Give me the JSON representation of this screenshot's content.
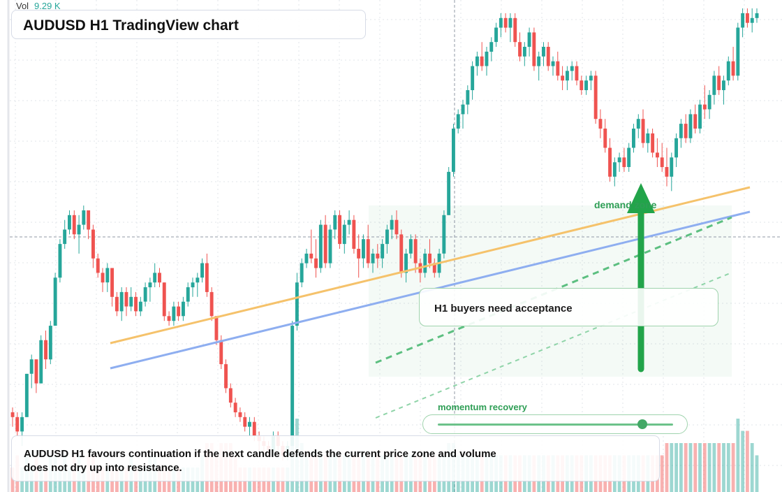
{
  "header": {
    "vol_label": "Vol",
    "vol_value": "9.29 K",
    "title": "AUDUSD H1 TradingView chart"
  },
  "annotations": {
    "callout": "H1 buyers need acceptance",
    "zone_label": "demand zone",
    "momentum_label": "momentum recovery",
    "momentum_level": 0.87,
    "summary": "AUDUSD H1 favours continuation if the next candle defends the current price zone and volume does not dry up into resistance."
  },
  "colors": {
    "up": "#26a69a",
    "down": "#ef5350",
    "trend_upper": "#f5c26b",
    "trend_lower": "#8eaef0",
    "accent_green": "#22a44a"
  },
  "chart_data": {
    "type": "candlestick",
    "symbol": "AUDUSD",
    "timeframe": "H1",
    "ylim": [
      0,
      1
    ],
    "candles": [
      [
        0.16,
        0.17,
        0.13,
        0.15,
        2
      ],
      [
        0.15,
        0.16,
        0.11,
        0.12,
        3
      ],
      [
        0.12,
        0.16,
        0.09,
        0.15,
        2
      ],
      [
        0.15,
        0.24,
        0.15,
        0.24,
        3
      ],
      [
        0.24,
        0.28,
        0.21,
        0.27,
        2
      ],
      [
        0.27,
        0.27,
        0.2,
        0.22,
        3
      ],
      [
        0.22,
        0.32,
        0.22,
        0.31,
        2
      ],
      [
        0.31,
        0.33,
        0.25,
        0.27,
        2
      ],
      [
        0.27,
        0.35,
        0.26,
        0.34,
        3
      ],
      [
        0.34,
        0.45,
        0.34,
        0.44,
        3
      ],
      [
        0.44,
        0.52,
        0.43,
        0.51,
        2
      ],
      [
        0.51,
        0.56,
        0.5,
        0.54,
        3
      ],
      [
        0.54,
        0.58,
        0.53,
        0.57,
        2
      ],
      [
        0.57,
        0.58,
        0.52,
        0.53,
        3
      ],
      [
        0.53,
        0.57,
        0.49,
        0.55,
        3
      ],
      [
        0.55,
        0.59,
        0.54,
        0.58,
        2
      ],
      [
        0.58,
        0.58,
        0.52,
        0.54,
        3
      ],
      [
        0.54,
        0.55,
        0.46,
        0.48,
        3
      ],
      [
        0.48,
        0.49,
        0.44,
        0.45,
        2
      ],
      [
        0.45,
        0.46,
        0.41,
        0.43,
        2
      ],
      [
        0.43,
        0.47,
        0.41,
        0.46,
        2
      ],
      [
        0.46,
        0.46,
        0.38,
        0.4,
        2
      ],
      [
        0.4,
        0.41,
        0.36,
        0.37,
        2
      ],
      [
        0.37,
        0.42,
        0.35,
        0.41,
        2
      ],
      [
        0.41,
        0.42,
        0.36,
        0.38,
        2
      ],
      [
        0.38,
        0.42,
        0.37,
        0.4,
        3
      ],
      [
        0.4,
        0.41,
        0.36,
        0.37,
        2
      ],
      [
        0.37,
        0.4,
        0.36,
        0.39,
        2
      ],
      [
        0.39,
        0.43,
        0.38,
        0.42,
        2
      ],
      [
        0.42,
        0.44,
        0.39,
        0.43,
        3
      ],
      [
        0.43,
        0.47,
        0.42,
        0.45,
        3
      ],
      [
        0.45,
        0.46,
        0.42,
        0.43,
        2
      ],
      [
        0.43,
        0.43,
        0.35,
        0.36,
        2
      ],
      [
        0.36,
        0.37,
        0.34,
        0.35,
        2
      ],
      [
        0.35,
        0.39,
        0.34,
        0.38,
        2
      ],
      [
        0.38,
        0.39,
        0.35,
        0.36,
        2
      ],
      [
        0.36,
        0.4,
        0.35,
        0.39,
        2
      ],
      [
        0.39,
        0.43,
        0.38,
        0.42,
        2
      ],
      [
        0.42,
        0.44,
        0.4,
        0.43,
        2
      ],
      [
        0.43,
        0.45,
        0.4,
        0.44,
        2
      ],
      [
        0.44,
        0.48,
        0.43,
        0.47,
        3
      ],
      [
        0.47,
        0.49,
        0.4,
        0.41,
        4
      ],
      [
        0.41,
        0.42,
        0.35,
        0.36,
        4
      ],
      [
        0.36,
        0.36,
        0.3,
        0.31,
        3
      ],
      [
        0.31,
        0.32,
        0.25,
        0.26,
        4
      ],
      [
        0.26,
        0.27,
        0.2,
        0.21,
        4
      ],
      [
        0.21,
        0.22,
        0.17,
        0.18,
        4
      ],
      [
        0.18,
        0.19,
        0.15,
        0.16,
        3
      ],
      [
        0.16,
        0.17,
        0.14,
        0.15,
        2
      ],
      [
        0.15,
        0.16,
        0.12,
        0.13,
        2
      ],
      [
        0.13,
        0.15,
        0.11,
        0.14,
        2
      ],
      [
        0.14,
        0.15,
        0.1,
        0.11,
        2
      ],
      [
        0.11,
        0.12,
        0.08,
        0.1,
        2
      ],
      [
        0.1,
        0.11,
        0.07,
        0.09,
        2
      ],
      [
        0.09,
        0.1,
        0.07,
        0.08,
        2
      ],
      [
        0.08,
        0.12,
        0.07,
        0.11,
        2
      ],
      [
        0.11,
        0.12,
        0.08,
        0.09,
        2
      ],
      [
        0.09,
        0.1,
        0.06,
        0.07,
        2
      ],
      [
        0.07,
        0.1,
        0.06,
        0.09,
        2
      ],
      [
        0.09,
        0.35,
        0.09,
        0.34,
        8
      ],
      [
        0.34,
        0.45,
        0.33,
        0.43,
        6
      ],
      [
        0.43,
        0.48,
        0.42,
        0.47,
        4
      ],
      [
        0.47,
        0.5,
        0.46,
        0.49,
        3
      ],
      [
        0.49,
        0.54,
        0.47,
        0.48,
        3
      ],
      [
        0.48,
        0.52,
        0.44,
        0.46,
        3
      ],
      [
        0.46,
        0.56,
        0.45,
        0.55,
        3
      ],
      [
        0.55,
        0.57,
        0.46,
        0.47,
        3
      ],
      [
        0.47,
        0.55,
        0.46,
        0.54,
        3
      ],
      [
        0.54,
        0.58,
        0.52,
        0.57,
        3
      ],
      [
        0.57,
        0.58,
        0.5,
        0.51,
        3
      ],
      [
        0.51,
        0.56,
        0.49,
        0.55,
        3
      ],
      [
        0.55,
        0.58,
        0.53,
        0.56,
        3
      ],
      [
        0.56,
        0.57,
        0.49,
        0.5,
        3
      ],
      [
        0.5,
        0.53,
        0.44,
        0.48,
        3
      ],
      [
        0.48,
        0.53,
        0.46,
        0.52,
        3
      ],
      [
        0.52,
        0.55,
        0.46,
        0.47,
        3
      ],
      [
        0.47,
        0.5,
        0.45,
        0.49,
        3
      ],
      [
        0.49,
        0.51,
        0.46,
        0.48,
        3
      ],
      [
        0.48,
        0.52,
        0.46,
        0.51,
        3
      ],
      [
        0.51,
        0.55,
        0.49,
        0.54,
        3
      ],
      [
        0.54,
        0.57,
        0.52,
        0.56,
        3
      ],
      [
        0.56,
        0.58,
        0.52,
        0.53,
        3
      ],
      [
        0.53,
        0.54,
        0.44,
        0.45,
        3
      ],
      [
        0.45,
        0.5,
        0.43,
        0.49,
        3
      ],
      [
        0.49,
        0.53,
        0.48,
        0.52,
        3
      ],
      [
        0.52,
        0.53,
        0.45,
        0.47,
        3
      ],
      [
        0.47,
        0.48,
        0.43,
        0.45,
        3
      ],
      [
        0.45,
        0.5,
        0.44,
        0.49,
        3
      ],
      [
        0.49,
        0.52,
        0.46,
        0.47,
        3
      ],
      [
        0.47,
        0.48,
        0.44,
        0.45,
        3
      ],
      [
        0.45,
        0.5,
        0.44,
        0.49,
        3
      ],
      [
        0.49,
        0.58,
        0.48,
        0.57,
        3
      ],
      [
        0.57,
        0.67,
        0.57,
        0.66,
        4
      ],
      [
        0.66,
        0.76,
        0.65,
        0.75,
        4
      ],
      [
        0.75,
        0.79,
        0.74,
        0.78,
        3
      ],
      [
        0.78,
        0.81,
        0.75,
        0.8,
        3
      ],
      [
        0.8,
        0.84,
        0.78,
        0.83,
        3
      ],
      [
        0.83,
        0.89,
        0.81,
        0.88,
        3
      ],
      [
        0.88,
        0.91,
        0.86,
        0.9,
        3
      ],
      [
        0.9,
        0.93,
        0.87,
        0.88,
        3
      ],
      [
        0.88,
        0.92,
        0.86,
        0.91,
        3
      ],
      [
        0.91,
        0.94,
        0.89,
        0.93,
        3
      ],
      [
        0.93,
        0.97,
        0.92,
        0.96,
        3
      ],
      [
        0.96,
        0.99,
        0.94,
        0.98,
        3
      ],
      [
        0.98,
        0.99,
        0.95,
        0.96,
        3
      ],
      [
        0.96,
        0.99,
        0.93,
        0.98,
        3
      ],
      [
        0.98,
        0.99,
        0.92,
        0.93,
        3
      ],
      [
        0.93,
        0.95,
        0.89,
        0.9,
        3
      ],
      [
        0.9,
        0.93,
        0.88,
        0.92,
        3
      ],
      [
        0.92,
        0.96,
        0.9,
        0.95,
        3
      ],
      [
        0.95,
        0.96,
        0.87,
        0.88,
        3
      ],
      [
        0.88,
        0.91,
        0.85,
        0.9,
        3
      ],
      [
        0.9,
        0.93,
        0.88,
        0.92,
        3
      ],
      [
        0.92,
        0.93,
        0.87,
        0.88,
        3
      ],
      [
        0.88,
        0.9,
        0.86,
        0.89,
        3
      ],
      [
        0.89,
        0.91,
        0.85,
        0.86,
        3
      ],
      [
        0.86,
        0.88,
        0.83,
        0.85,
        3
      ],
      [
        0.85,
        0.88,
        0.83,
        0.87,
        3
      ],
      [
        0.87,
        0.89,
        0.85,
        0.88,
        3
      ],
      [
        0.88,
        0.89,
        0.84,
        0.85,
        3
      ],
      [
        0.85,
        0.86,
        0.82,
        0.83,
        3
      ],
      [
        0.83,
        0.86,
        0.82,
        0.85,
        3
      ],
      [
        0.85,
        0.87,
        0.83,
        0.86,
        3
      ],
      [
        0.86,
        0.87,
        0.76,
        0.77,
        3
      ],
      [
        0.77,
        0.79,
        0.73,
        0.75,
        3
      ],
      [
        0.75,
        0.77,
        0.7,
        0.71,
        3
      ],
      [
        0.71,
        0.73,
        0.64,
        0.65,
        3
      ],
      [
        0.65,
        0.69,
        0.63,
        0.68,
        3
      ],
      [
        0.68,
        0.7,
        0.66,
        0.69,
        3
      ],
      [
        0.69,
        0.71,
        0.66,
        0.67,
        3
      ],
      [
        0.67,
        0.72,
        0.66,
        0.71,
        3
      ],
      [
        0.71,
        0.76,
        0.7,
        0.75,
        3
      ],
      [
        0.75,
        0.78,
        0.73,
        0.77,
        3
      ],
      [
        0.77,
        0.79,
        0.71,
        0.72,
        3
      ],
      [
        0.72,
        0.75,
        0.7,
        0.74,
        3
      ],
      [
        0.74,
        0.75,
        0.69,
        0.7,
        3
      ],
      [
        0.7,
        0.73,
        0.67,
        0.69,
        3
      ],
      [
        0.69,
        0.72,
        0.66,
        0.67,
        3
      ],
      [
        0.67,
        0.71,
        0.63,
        0.65,
        4
      ],
      [
        0.65,
        0.7,
        0.62,
        0.69,
        4
      ],
      [
        0.69,
        0.74,
        0.67,
        0.73,
        4
      ],
      [
        0.73,
        0.77,
        0.71,
        0.76,
        4
      ],
      [
        0.76,
        0.78,
        0.72,
        0.73,
        4
      ],
      [
        0.73,
        0.79,
        0.72,
        0.78,
        4
      ],
      [
        0.78,
        0.8,
        0.74,
        0.75,
        4
      ],
      [
        0.75,
        0.81,
        0.74,
        0.8,
        4
      ],
      [
        0.8,
        0.84,
        0.77,
        0.79,
        4
      ],
      [
        0.79,
        0.83,
        0.77,
        0.82,
        4
      ],
      [
        0.82,
        0.87,
        0.8,
        0.86,
        4
      ],
      [
        0.86,
        0.88,
        0.82,
        0.83,
        4
      ],
      [
        0.83,
        0.86,
        0.8,
        0.85,
        4
      ],
      [
        0.85,
        0.9,
        0.84,
        0.89,
        4
      ],
      [
        0.89,
        0.92,
        0.85,
        0.86,
        4
      ],
      [
        0.86,
        0.97,
        0.85,
        0.96,
        6
      ],
      [
        0.96,
        1.0,
        0.94,
        0.99,
        5
      ],
      [
        0.99,
        1.0,
        0.96,
        0.97,
        5
      ],
      [
        0.97,
        1.0,
        0.95,
        0.98,
        4
      ],
      [
        0.98,
        1.0,
        0.97,
        0.99,
        3
      ]
    ],
    "volume_ylim": [
      0,
      8
    ]
  }
}
